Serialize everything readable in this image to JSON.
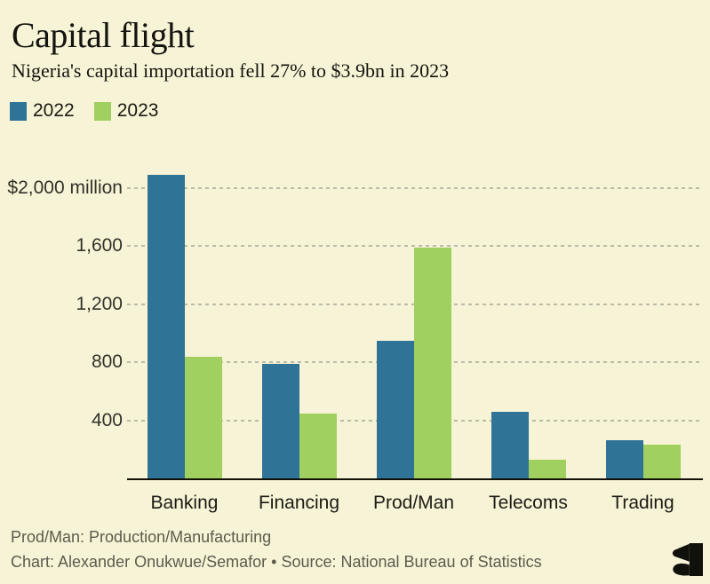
{
  "header": {
    "title": "Capital flight",
    "subtitle": "Nigeria's capital importation fell 27% to $3.9bn in 2023"
  },
  "legend": {
    "items": [
      {
        "label": "2022",
        "color": "#2f7396"
      },
      {
        "label": "2023",
        "color": "#a0d060"
      }
    ]
  },
  "chart_data": {
    "type": "bar",
    "title": "Capital flight",
    "subtitle": "Nigeria's capital importation fell 27% to $3.9bn in 2023",
    "unit": "$ million",
    "categories": [
      "Banking",
      "Financing",
      "Prod/Man",
      "Telecoms",
      "Trading"
    ],
    "series": [
      {
        "name": "2022",
        "color": "#2f7396",
        "values": [
          2090,
          790,
          945,
          460,
          265
        ]
      },
      {
        "name": "2023",
        "color": "#a0d060",
        "values": [
          835,
          445,
          1590,
          130,
          235
        ]
      }
    ],
    "ylim": [
      0,
      2100
    ],
    "yticks": [
      {
        "value": 400,
        "label": "400"
      },
      {
        "value": 800,
        "label": "800"
      },
      {
        "value": 1200,
        "label": "1,200"
      },
      {
        "value": 1600,
        "label": "1,600"
      },
      {
        "value": 2000,
        "label": "$2,000 million"
      }
    ],
    "grid": "horizontal-dashed",
    "legend_position": "top-left",
    "xlabel": "",
    "ylabel": ""
  },
  "footer": {
    "note": "Prod/Man: Production/Manufacturing",
    "credit": "Chart: Alexander Onukwue/Semafor • Source: National Bureau of Statistics",
    "logo": "semafor-logo"
  },
  "colors": {
    "background": "#f7f3d6",
    "series_2022": "#2f7396",
    "series_2023": "#a0d060",
    "gridline": "#bcb9a7",
    "axis": "#111108",
    "text": "#15140f",
    "muted_text": "#5d5b4c"
  }
}
